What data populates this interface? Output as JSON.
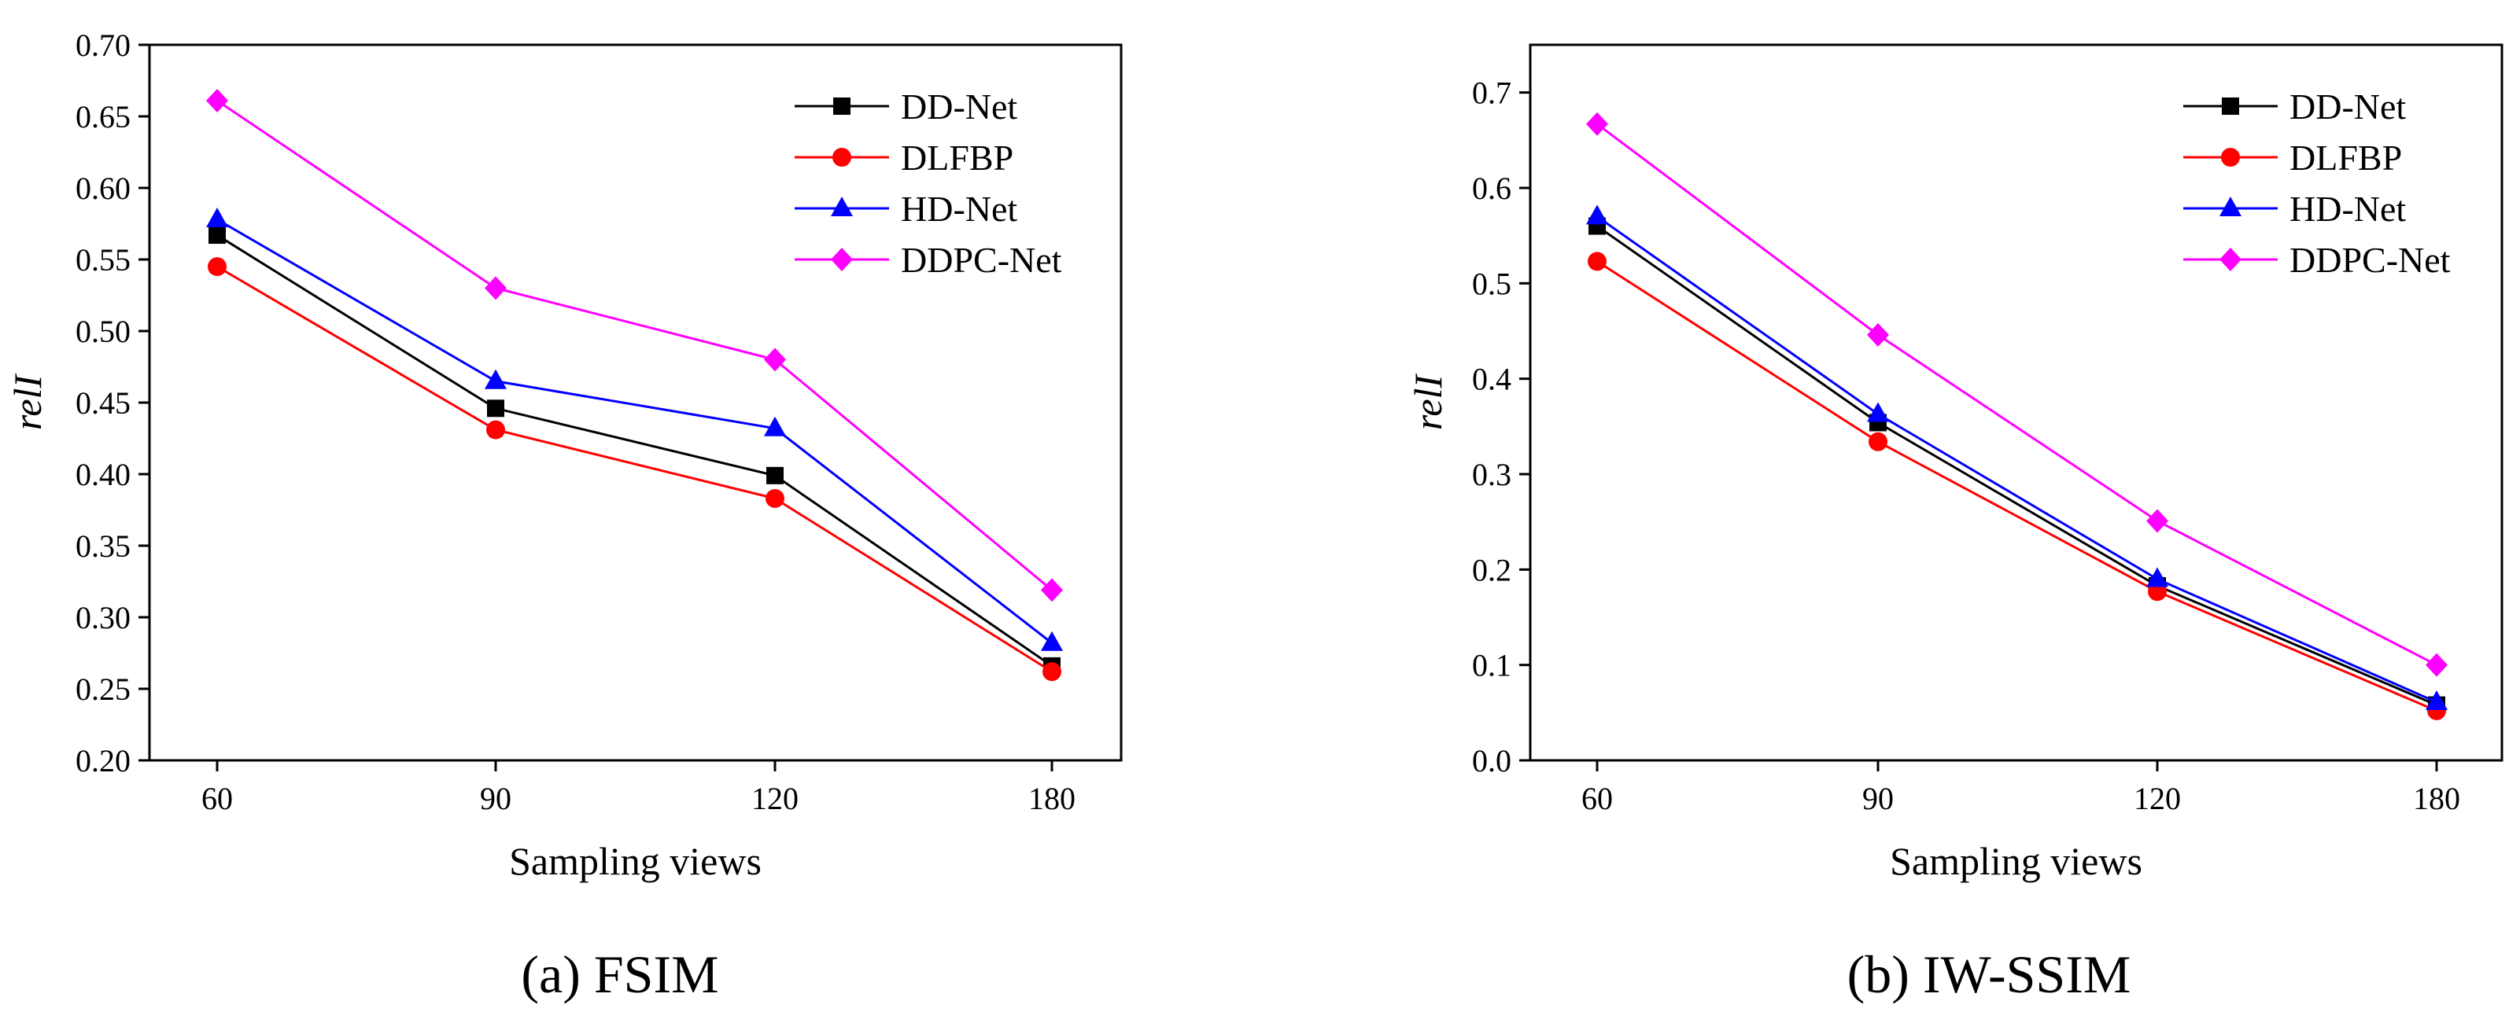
{
  "chart_data": [
    {
      "type": "line",
      "caption": "(a) FSIM",
      "xlabel": "Sampling views",
      "ylabel": "relI",
      "categories": [
        60,
        90,
        120,
        180
      ],
      "x_tick_labels": [
        "60",
        "90",
        "120",
        "180"
      ],
      "ylim": [
        0.2,
        0.7
      ],
      "y_ticks": [
        0.2,
        0.25,
        0.3,
        0.35,
        0.4,
        0.45,
        0.5,
        0.55,
        0.6,
        0.65,
        0.7
      ],
      "y_tick_labels": [
        "0.20",
        "0.25",
        "0.30",
        "0.35",
        "0.40",
        "0.45",
        "0.50",
        "0.55",
        "0.60",
        "0.65",
        "0.70"
      ],
      "legend_position": "top-right",
      "grid": false,
      "series": [
        {
          "name": "DD-Net",
          "color": "#000000",
          "marker": "square",
          "values": [
            0.567,
            0.446,
            0.399,
            0.266
          ]
        },
        {
          "name": "DLFBP",
          "color": "#ff0000",
          "marker": "circle",
          "values": [
            0.545,
            0.431,
            0.383,
            0.262
          ]
        },
        {
          "name": "HD-Net",
          "color": "#0000ff",
          "marker": "triangle",
          "values": [
            0.578,
            0.465,
            0.432,
            0.282
          ]
        },
        {
          "name": "DDPC-Net",
          "color": "#ff00ff",
          "marker": "diamond",
          "values": [
            0.661,
            0.53,
            0.48,
            0.319
          ]
        }
      ]
    },
    {
      "type": "line",
      "caption": "(b) IW-SSIM",
      "xlabel": "Sampling views",
      "ylabel": "relI",
      "categories": [
        60,
        90,
        120,
        180
      ],
      "x_tick_labels": [
        "60",
        "90",
        "120",
        "180"
      ],
      "ylim": [
        0.0,
        0.75
      ],
      "y_ticks": [
        0.0,
        0.1,
        0.2,
        0.3,
        0.4,
        0.5,
        0.6,
        0.7
      ],
      "y_tick_labels": [
        "0.0",
        "0.1",
        "0.2",
        "0.3",
        "0.4",
        "0.5",
        "0.6",
        "0.7"
      ],
      "legend_position": "top-right",
      "grid": false,
      "series": [
        {
          "name": "DD-Net",
          "color": "#000000",
          "marker": "square",
          "values": [
            0.56,
            0.354,
            0.183,
            0.058
          ]
        },
        {
          "name": "DLFBP",
          "color": "#ff0000",
          "marker": "circle",
          "values": [
            0.523,
            0.334,
            0.177,
            0.052
          ]
        },
        {
          "name": "HD-Net",
          "color": "#0000ff",
          "marker": "triangle",
          "values": [
            0.57,
            0.363,
            0.19,
            0.061
          ]
        },
        {
          "name": "DDPC-Net",
          "color": "#ff00ff",
          "marker": "diamond",
          "values": [
            0.667,
            0.446,
            0.251,
            0.1
          ]
        }
      ]
    }
  ]
}
